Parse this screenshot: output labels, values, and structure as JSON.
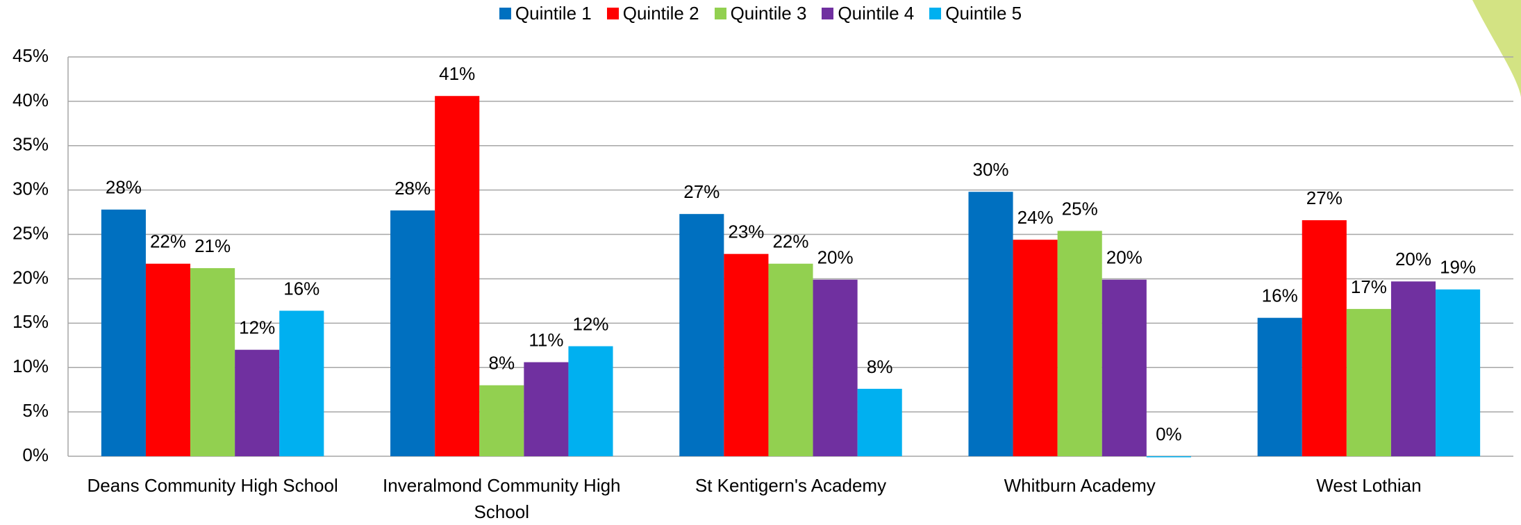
{
  "chart_data": {
    "type": "bar",
    "categories": [
      "Deans Community High School",
      "Inveralmond Community High School",
      "St Kentigern's Academy",
      "Whitburn Academy",
      "West Lothian"
    ],
    "series": [
      {
        "name": "Quintile 1",
        "color": "#0070c0",
        "values": [
          27.8,
          27.7,
          27.3,
          29.8,
          15.6
        ],
        "value_labels": [
          "28%",
          "28%",
          "27%",
          "30%",
          "16%"
        ]
      },
      {
        "name": "Quintile 2",
        "color": "#ff0000",
        "values": [
          21.7,
          40.6,
          22.8,
          24.4,
          26.6
        ],
        "value_labels": [
          "22%",
          "41%",
          "23%",
          "24%",
          "27%"
        ]
      },
      {
        "name": "Quintile 3",
        "color": "#92d050",
        "values": [
          21.2,
          8.0,
          21.7,
          25.4,
          16.6
        ],
        "value_labels": [
          "21%",
          "8%",
          "22%",
          "25%",
          "17%"
        ]
      },
      {
        "name": "Quintile 4",
        "color": "#7030a0",
        "values": [
          12.0,
          10.6,
          19.9,
          19.9,
          19.7
        ],
        "value_labels": [
          "12%",
          "11%",
          "20%",
          "20%",
          "20%"
        ]
      },
      {
        "name": "Quintile 5",
        "color": "#00b0f0",
        "values": [
          16.4,
          12.4,
          7.6,
          0,
          18.8
        ],
        "value_labels": [
          "16%",
          "12%",
          "8%",
          "0%",
          "19%"
        ]
      }
    ],
    "ylim": [
      0,
      45
    ],
    "yticks": [
      {
        "value": 0,
        "label": "0%"
      },
      {
        "value": 5,
        "label": "5%"
      },
      {
        "value": 10,
        "label": "10%"
      },
      {
        "value": 15,
        "label": "15%"
      },
      {
        "value": 20,
        "label": "20%"
      },
      {
        "value": 25,
        "label": "25%"
      },
      {
        "value": 30,
        "label": "30%"
      },
      {
        "value": 35,
        "label": "35%"
      },
      {
        "value": 40,
        "label": "40%"
      },
      {
        "value": 45,
        "label": "45%"
      }
    ],
    "grid": true,
    "legend": "top"
  }
}
